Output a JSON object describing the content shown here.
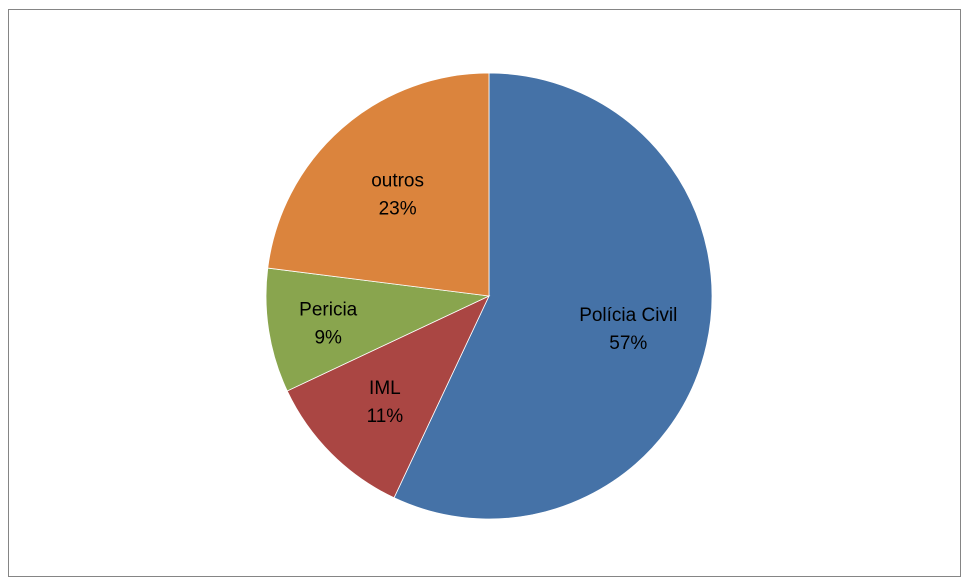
{
  "chart_data": {
    "type": "pie",
    "title": "",
    "slices": [
      {
        "label": "Polícia Civil",
        "value": 57,
        "percent_label": "57%",
        "color": "#4572a7"
      },
      {
        "label": "IML",
        "value": 11,
        "percent_label": "11%",
        "color": "#aa4643"
      },
      {
        "label": "Pericia",
        "value": 9,
        "percent_label": "9%",
        "color": "#89a54e"
      },
      {
        "label": "outros",
        "value": 23,
        "percent_label": "23%",
        "color": "#db843d"
      }
    ],
    "start_angle": "12 o'clock",
    "direction": "clockwise",
    "legend": "none",
    "data_labels": "category and percent inside slices"
  }
}
